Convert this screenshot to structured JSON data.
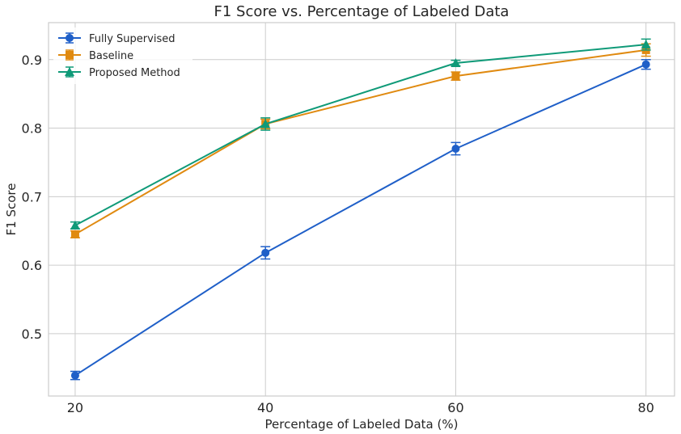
{
  "chart_data": {
    "type": "line",
    "title": "F1 Score vs. Percentage of Labeled Data",
    "xlabel": "Percentage of Labeled Data (%)",
    "ylabel": "F1 Score",
    "x": [
      20,
      40,
      60,
      80
    ],
    "xticks": [
      "20",
      "40",
      "60",
      "80"
    ],
    "yticks": [
      "0.5",
      "0.6",
      "0.7",
      "0.8",
      "0.9"
    ],
    "xlim": [
      17.2,
      83
    ],
    "ylim": [
      0.409,
      0.954
    ],
    "grid": true,
    "legend_position": "top-left",
    "series": [
      {
        "name": "Fully Supervised",
        "color": "#1f5fc8",
        "marker": "circle",
        "values": [
          0.439,
          0.618,
          0.77,
          0.893
        ],
        "errors": [
          0.006,
          0.009,
          0.009,
          0.007
        ]
      },
      {
        "name": "Baseline",
        "color": "#e08a10",
        "marker": "square",
        "values": [
          0.645,
          0.806,
          0.876,
          0.914
        ],
        "errors": [
          0.005,
          0.007,
          0.006,
          0.009
        ]
      },
      {
        "name": "Proposed Method",
        "color": "#0f9a78",
        "marker": "triangle",
        "values": [
          0.658,
          0.806,
          0.895,
          0.922
        ],
        "errors": [
          0.005,
          0.009,
          0.004,
          0.008
        ]
      }
    ]
  }
}
